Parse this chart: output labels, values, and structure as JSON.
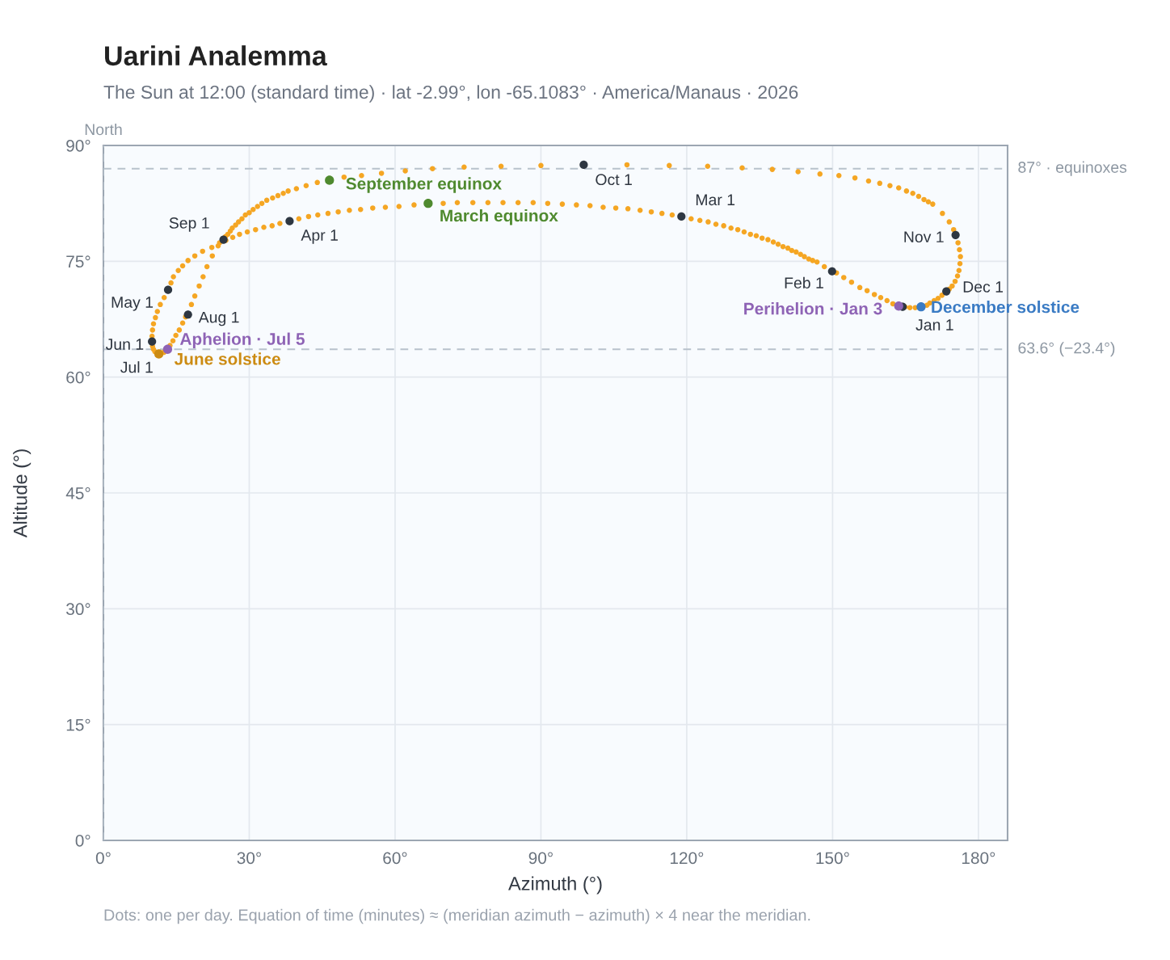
{
  "chart_data": {
    "type": "scatter",
    "title": "Uarini Analemma",
    "subtitle": "The Sun at 12:00 (standard time) · lat -2.99°, lon -65.1083° · America/Manaus · 2026",
    "xlabel": "Azimuth (°)",
    "ylabel": "Altitude (°)",
    "xlim": [
      0,
      186
    ],
    "ylim": [
      0,
      90
    ],
    "xticks": [
      {
        "value": 0,
        "label": "0°"
      },
      {
        "value": 30,
        "label": "30°"
      },
      {
        "value": 60,
        "label": "60°"
      },
      {
        "value": 90,
        "label": "90°"
      },
      {
        "value": 120,
        "label": "120°"
      },
      {
        "value": 150,
        "label": "150°"
      },
      {
        "value": 180,
        "label": "180°"
      }
    ],
    "yticks": [
      {
        "value": 0,
        "label": "0°"
      },
      {
        "value": 15,
        "label": "15°"
      },
      {
        "value": 30,
        "label": "30°"
      },
      {
        "value": 45,
        "label": "45°"
      },
      {
        "value": 60,
        "label": "60°"
      },
      {
        "value": 75,
        "label": "75°"
      },
      {
        "value": 90,
        "label": "90°"
      }
    ],
    "grid": true,
    "marker": "circle",
    "series": [
      {
        "color": "#f5a623",
        "x": [
          162.4,
          161.2,
          159.9,
          158.6,
          157.1,
          155.6,
          153.9,
          152.3,
          150.8,
          148.3,
          146.8,
          145.9,
          145.1,
          144.2,
          143.4,
          142.5,
          141.6,
          140.8,
          139.8,
          138.8,
          137.8,
          136.7,
          135.5,
          134.3,
          133.1,
          131.8,
          130.5,
          129.1,
          127.6,
          126.0,
          124.4,
          122.7,
          120.9,
          117.0,
          114.9,
          112.7,
          110.4,
          107.9,
          105.4,
          102.8,
          100.1,
          97.3,
          94.4,
          91.4,
          88.4,
          85.3,
          82.2,
          79.1,
          76.0,
          72.8,
          69.9,
          63.9,
          60.8,
          58.0,
          55.4,
          52.9,
          50.6,
          48.3,
          46.2,
          44.1,
          42.2,
          40.2,
          36.3,
          34.7,
          33.0,
          31.3,
          29.6,
          28.0,
          26.6,
          25.2,
          23.9,
          22.3,
          20.4,
          18.8,
          17.4,
          16.3,
          15.4,
          14.4,
          13.9,
          12.5,
          11.7,
          11.1,
          10.7,
          10.3,
          10.1,
          10.0,
          10.1,
          10.3,
          10.6,
          12.4,
          12.6,
          13.7,
          14.3,
          14.9,
          15.6,
          16.3,
          16.9,
          18.1,
          18.8,
          19.7,
          20.5,
          21.3,
          22.4,
          23.6,
          25.1,
          25.6,
          26.1,
          26.5,
          27.2,
          27.8,
          28.5,
          29.2,
          30.0,
          30.8,
          31.7,
          32.6,
          33.6,
          34.8,
          35.9,
          37.0,
          38.0,
          39.7,
          41.7,
          44.0,
          49.5,
          53.1,
          57.2,
          62.1,
          67.7,
          74.2,
          81.8,
          90.0,
          107.7,
          116.4,
          124.3,
          131.4,
          137.6,
          142.9,
          147.4,
          151.3,
          154.6,
          157.4,
          159.7,
          161.8,
          163.6,
          165.2,
          166.5,
          167.7,
          168.8,
          169.7,
          170.6,
          172.6,
          174.0,
          174.9,
          175.8,
          176.1,
          176.3,
          176.2,
          176.0,
          175.7,
          175.2,
          174.6,
          174.0,
          172.5,
          171.7,
          170.9,
          170.0,
          169.4,
          168.7,
          167.0,
          165.9,
          164.9
        ],
        "values": [
          69.5,
          69.9,
          70.3,
          70.7,
          71.2,
          71.6,
          72.3,
          72.9,
          73.5,
          74.3,
          74.9,
          75.1,
          75.3,
          75.6,
          75.9,
          76.2,
          76.4,
          76.7,
          76.9,
          77.2,
          77.5,
          77.8,
          78.0,
          78.3,
          78.5,
          78.8,
          79.1,
          79.3,
          79.6,
          79.8,
          80.1,
          80.3,
          80.5,
          81.0,
          81.2,
          81.4,
          81.6,
          81.8,
          81.9,
          82.0,
          82.2,
          82.3,
          82.4,
          82.5,
          82.6,
          82.6,
          82.6,
          82.6,
          82.6,
          82.6,
          82.5,
          82.3,
          82.1,
          82.0,
          81.9,
          81.7,
          81.6,
          81.4,
          81.2,
          81.0,
          80.8,
          80.5,
          79.9,
          79.6,
          79.4,
          79.1,
          78.8,
          78.5,
          78.1,
          77.7,
          77.4,
          76.8,
          76.3,
          75.7,
          75.1,
          74.4,
          73.8,
          73.0,
          72.2,
          70.3,
          69.4,
          68.5,
          67.7,
          66.9,
          66.1,
          65.3,
          64.0,
          63.6,
          63.3,
          63.2,
          63.3,
          64.1,
          64.7,
          65.4,
          66.1,
          67.0,
          67.8,
          69.4,
          70.5,
          71.8,
          73.0,
          74.3,
          75.7,
          77.0,
          78.2,
          78.5,
          78.9,
          79.3,
          79.7,
          80.1,
          80.5,
          81.0,
          81.3,
          81.7,
          82.1,
          82.5,
          82.9,
          83.2,
          83.5,
          83.8,
          84.1,
          84.4,
          84.8,
          85.2,
          85.9,
          86.1,
          86.4,
          86.7,
          87.0,
          87.2,
          87.3,
          87.4,
          87.5,
          87.4,
          87.3,
          87.1,
          86.9,
          86.6,
          86.3,
          86.1,
          85.8,
          85.4,
          85.1,
          84.8,
          84.5,
          84.1,
          83.8,
          83.4,
          83.0,
          82.7,
          82.4,
          81.2,
          80.1,
          79.1,
          77.4,
          76.5,
          75.6,
          74.7,
          73.8,
          73.1,
          72.4,
          71.8,
          71.4,
          70.6,
          70.2,
          69.9,
          69.6,
          69.3,
          69.2,
          69.0,
          69.0,
          69.1
        ]
      },
      {
        "color": "#2e3742",
        "x": [
          164.4,
          149.9,
          118.9,
          38.3,
          13.3,
          10.0,
          12.6,
          17.4,
          24.7,
          98.8,
          175.3,
          173.4
        ],
        "values": [
          69.1,
          73.7,
          80.8,
          80.2,
          71.3,
          64.6,
          null,
          68.1,
          77.8,
          87.5,
          78.4,
          71.1
        ]
      },
      {
        "name": "Perihelion · Jan 3",
        "color": "#8e63b5",
        "x": [
          163.6
        ],
        "values": [
          69.2
        ]
      },
      {
        "name": "March equinox",
        "color": "#4f8a2f",
        "x": [
          66.8
        ],
        "values": [
          82.5
        ]
      },
      {
        "name": "June solstice",
        "color": "#cc8b12",
        "x": [
          11.4
        ],
        "values": [
          63.0
        ]
      },
      {
        "name": "Aphelion · Jul 5",
        "color": "#8e63b5",
        "x": [
          13.2
        ],
        "values": [
          63.6
        ]
      },
      {
        "name": "September equinox",
        "color": "#4f8a2f",
        "x": [
          46.5
        ],
        "values": [
          85.5
        ]
      },
      {
        "name": "December solstice",
        "color": "#3a7bc4",
        "x": [
          168.2
        ],
        "values": [
          69.1
        ]
      }
    ],
    "ref_lines": [
      {
        "axis": "x",
        "value": 0,
        "label": "North",
        "color": "#b8c2cc",
        "line_style": "dashed"
      },
      {
        "axis": "y",
        "value": 87,
        "label": "87° · equinoxes",
        "color": "#b8c2cc",
        "line_style": "dashed"
      },
      {
        "axis": "y",
        "value": 63.6,
        "label": "63.6° (−23.4°)",
        "color": "#b8c2cc",
        "line_style": "dashed"
      }
    ],
    "annotations": [
      {
        "text": "Jan 1",
        "x": 164.4,
        "y": 69.1
      },
      {
        "text": "Feb 1",
        "x": 149.9,
        "y": 73.7
      },
      {
        "text": "Mar 1",
        "x": 118.9,
        "y": 80.8
      },
      {
        "text": "Apr 1",
        "x": 38.3,
        "y": 80.2
      },
      {
        "text": "May 1",
        "x": 13.3,
        "y": 71.3
      },
      {
        "text": "Jun 1",
        "x": 10.0,
        "y": 64.6
      },
      {
        "text": "Jul 1",
        "x": 12.6,
        "y": 63.3
      },
      {
        "text": "Aug 1",
        "x": 17.4,
        "y": 68.1
      },
      {
        "text": "Sep 1",
        "x": 24.7,
        "y": 77.8
      },
      {
        "text": "Oct 1",
        "x": 98.8,
        "y": 87.5
      },
      {
        "text": "Nov 1",
        "x": 175.3,
        "y": 78.4
      },
      {
        "text": "Dec 1",
        "x": 173.4,
        "y": 71.1
      },
      "Dots: one per day. Equation of time (minutes) ≈ (meridian azimuth − azimuth) × 4 near the meridian."
    ]
  }
}
